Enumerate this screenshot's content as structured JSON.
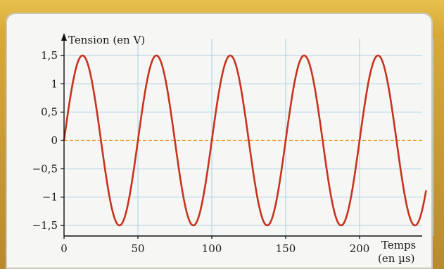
{
  "chart_data": {
    "type": "line",
    "ylabel": "Tension (en V)",
    "xlabel_line1": "Temps",
    "xlabel_line2": "(en µs)",
    "x_ticks": [
      {
        "value": 0,
        "label": "0"
      },
      {
        "value": 50,
        "label": "50"
      },
      {
        "value": 100,
        "label": "100"
      },
      {
        "value": 150,
        "label": "150"
      },
      {
        "value": 200,
        "label": "200"
      }
    ],
    "y_ticks": [
      {
        "value": 1.5,
        "label": "1,5"
      },
      {
        "value": 1,
        "label": "1"
      },
      {
        "value": 0.5,
        "label": "0,5"
      },
      {
        "value": 0,
        "label": "0"
      },
      {
        "value": -0.5,
        "label": "−0,5"
      },
      {
        "value": -1,
        "label": "−1"
      },
      {
        "value": -1.5,
        "label": "−1,5"
      }
    ],
    "xlim": [
      0,
      250
    ],
    "ylim": [
      -1.6,
      1.6
    ],
    "grid": true,
    "series": [
      {
        "amplitude": 1.5,
        "period": 50,
        "phase": 0,
        "color": "#c8321e"
      }
    ],
    "baseline_color": "#e8a23a",
    "grid_color": "#a9cfe6"
  }
}
